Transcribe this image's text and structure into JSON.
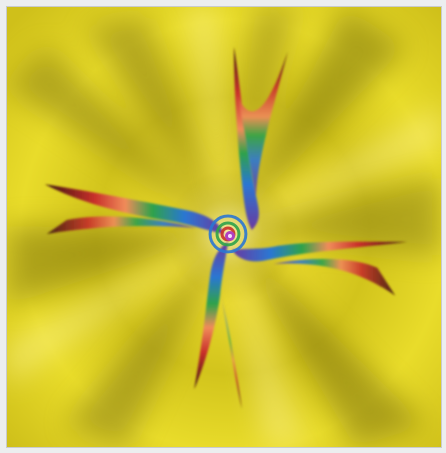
{
  "image": {
    "description_colors": {
      "background": "#e2d21e",
      "background_dark": "#8f8a1a",
      "frame": "#eceeef",
      "arm_red": "#c2272d",
      "arm_green": "#2aa84a",
      "arm_blue": "#2a6fd0",
      "center_purple": "#b040c0"
    }
  }
}
